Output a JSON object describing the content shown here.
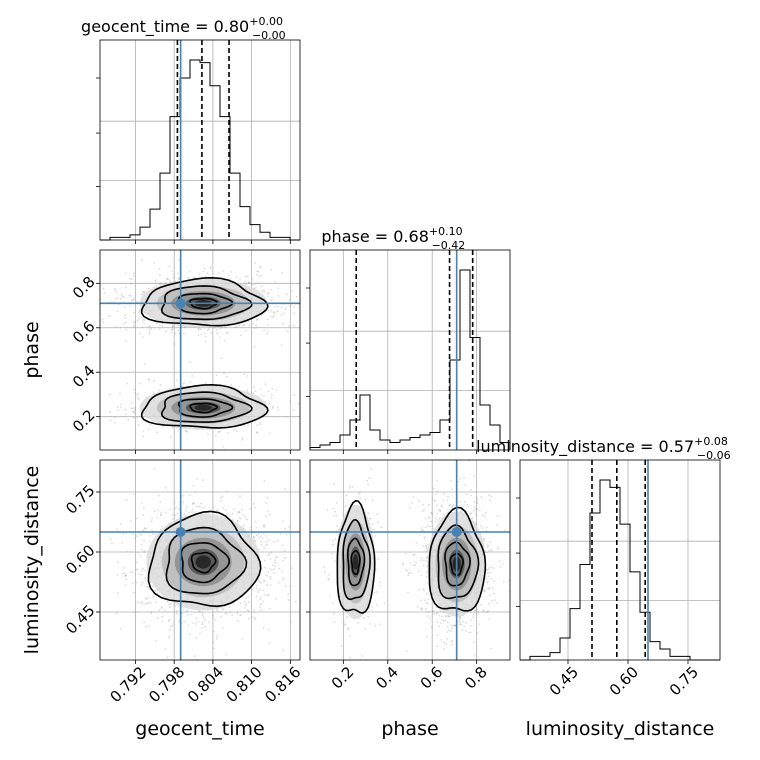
{
  "chart_data": {
    "type": "corner",
    "parameters": [
      {
        "name": "geocent_time",
        "range": [
          0.7865,
          0.8175
        ],
        "ticks": [
          "0.792",
          "0.798",
          "0.804",
          "0.810",
          "0.816"
        ],
        "tick_values": [
          0.792,
          0.798,
          0.804,
          0.81,
          0.816
        ]
      },
      {
        "name": "phase",
        "range": [
          0.05,
          0.95
        ],
        "ticks": [
          "0.2",
          "0.4",
          "0.6",
          "0.8"
        ],
        "tick_values": [
          0.2,
          0.4,
          0.6,
          0.8
        ]
      },
      {
        "name": "luminosity_distance",
        "range": [
          0.33,
          0.83
        ],
        "ticks": [
          "0.45",
          "0.60",
          "0.75"
        ],
        "tick_values": [
          0.45,
          0.6,
          0.75
        ]
      }
    ],
    "titles": [
      {
        "base": "geocent_time = 0.80",
        "sup": "+0.00",
        "sub": "−0.00"
      },
      {
        "base": "phase = 0.68",
        "sup": "+0.10",
        "sub": "−0.42"
      },
      {
        "base": "luminosity_distance = 0.57",
        "sup": "+0.08",
        "sub": "−0.06"
      }
    ],
    "truths": [
      0.799,
      0.71,
      0.65
    ],
    "quantiles": [
      [
        0.7985,
        0.8023,
        0.8065
      ],
      [
        0.258,
        0.678,
        0.782
      ],
      [
        0.51,
        0.572,
        0.643
      ]
    ],
    "histograms": [
      {
        "edges_start": 0.7865,
        "bin_width": 0.00155,
        "counts": [
          0,
          1,
          1,
          2,
          5,
          12,
          26,
          48,
          63,
          70,
          69,
          60,
          48,
          26,
          13,
          6,
          3,
          1,
          1,
          0
        ]
      },
      {
        "edges_start": 0.05,
        "bin_width": 0.045,
        "counts": [
          1,
          2,
          3,
          6,
          12,
          22,
          8,
          4,
          3,
          4,
          5,
          6,
          7,
          12,
          36,
          72,
          45,
          18,
          10,
          3
        ]
      },
      {
        "edges_start": 0.33,
        "bin_width": 0.025,
        "counts": [
          0,
          1,
          1,
          2,
          6,
          14,
          26,
          40,
          49,
          47,
          37,
          24,
          13,
          5,
          3,
          1,
          1,
          0,
          0,
          0
        ]
      }
    ],
    "y_tick_label_rows": [
      1,
      2
    ],
    "grid": true
  }
}
